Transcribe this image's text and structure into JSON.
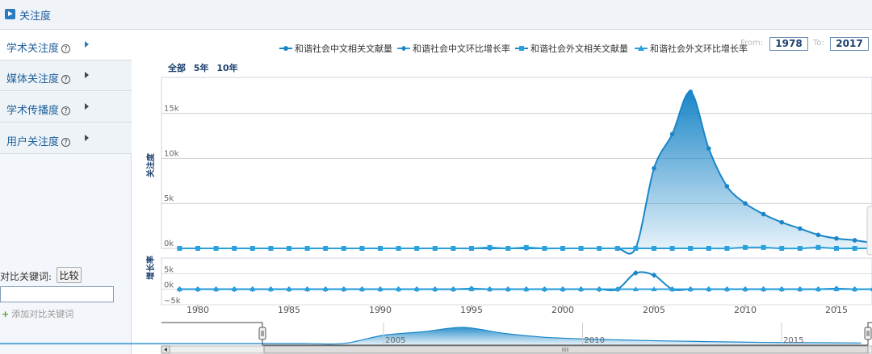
{
  "header": {
    "title": "关注度"
  },
  "sidebar": {
    "items": [
      {
        "label": "学术关注度",
        "active": true
      },
      {
        "label": "媒体关注度",
        "active": false
      },
      {
        "label": "学术传播度",
        "active": false
      },
      {
        "label": "用户关注度",
        "active": false
      }
    ],
    "help_glyph": "?",
    "compare_label": "对比关键词:",
    "compare_button": "比较",
    "compare_input_value": "",
    "add_keyword": "添加对比关键词",
    "add_keyword_icon": "plus-icon"
  },
  "controls": {
    "range_buttons": [
      "全部",
      "5年",
      "10年"
    ],
    "from_label": "From:",
    "from_value": "1978",
    "to_label": "To:",
    "to_value": "2017"
  },
  "chart_data": {
    "type": "line",
    "legend": {
      "position": "top",
      "entries": [
        "和谐社会中文相关文献量",
        "和谐社会中文环比增长率",
        "和谐社会外文相关文献量",
        "和谐社会外文环比增长率"
      ]
    },
    "colors": {
      "primary": "#1a86c8",
      "secondary": "#2aa0dc",
      "fill": "#1a86c8"
    },
    "xlim": [
      1979,
      2017
    ],
    "x_ticks": [
      1980,
      1985,
      1990,
      1995,
      2000,
      2005,
      2010,
      2015
    ],
    "top_panel": {
      "ylabel": "关注度",
      "ylim": [
        0,
        19000
      ],
      "y_ticks": [
        {
          "value": 0,
          "label": "0k"
        },
        {
          "value": 5000,
          "label": "5k"
        },
        {
          "value": 10000,
          "label": "10k"
        },
        {
          "value": 15000,
          "label": "15k"
        }
      ],
      "series": [
        {
          "name": "和谐社会中文相关文献量",
          "marker": "circle",
          "area": true,
          "x": [
            1979,
            1980,
            1981,
            1982,
            1983,
            1984,
            1985,
            1986,
            1987,
            1988,
            1989,
            1990,
            1991,
            1992,
            1993,
            1994,
            1995,
            1996,
            1997,
            1998,
            1999,
            2000,
            2001,
            2002,
            2003,
            2004,
            2005,
            2006,
            2007,
            2008,
            2009,
            2010,
            2011,
            2012,
            2013,
            2014,
            2015,
            2016,
            2017
          ],
          "values": [
            0,
            0,
            0,
            0,
            0,
            0,
            0,
            0,
            0,
            0,
            0,
            0,
            0,
            0,
            0,
            0,
            0,
            0,
            0,
            0,
            0,
            0,
            0,
            0,
            0,
            50,
            8900,
            12700,
            17400,
            11100,
            6900,
            5000,
            3800,
            2900,
            2200,
            1500,
            1100,
            900,
            600
          ]
        },
        {
          "name": "和谐社会外文相关文献量",
          "marker": "square",
          "area": false,
          "x": [
            1979,
            1980,
            1981,
            1982,
            1983,
            1984,
            1985,
            1986,
            1987,
            1988,
            1989,
            1990,
            1991,
            1992,
            1993,
            1994,
            1995,
            1996,
            1997,
            1998,
            1999,
            2000,
            2001,
            2002,
            2003,
            2004,
            2005,
            2006,
            2007,
            2008,
            2009,
            2010,
            2011,
            2012,
            2013,
            2014,
            2015,
            2016,
            2017
          ],
          "values": [
            0,
            0,
            0,
            0,
            0,
            0,
            0,
            0,
            0,
            0,
            0,
            0,
            0,
            0,
            0,
            0,
            0,
            100,
            0,
            100,
            0,
            0,
            0,
            0,
            0,
            0,
            0,
            0,
            0,
            0,
            0,
            100,
            100,
            0,
            0,
            100,
            0,
            0,
            0
          ]
        }
      ]
    },
    "bottom_panel": {
      "ylabel": "增长率",
      "ylim": [
        -5000,
        10000
      ],
      "y_ticks": [
        {
          "value": -5000,
          "label": "−5k"
        },
        {
          "value": 0,
          "label": "0k"
        },
        {
          "value": 5000,
          "label": "5k"
        }
      ],
      "series": [
        {
          "name": "和谐社会中文环比增长率",
          "marker": "diamond",
          "x": [
            1979,
            1980,
            1981,
            1982,
            1983,
            1984,
            1985,
            1986,
            1987,
            1988,
            1989,
            1990,
            1991,
            1992,
            1993,
            1994,
            1995,
            1996,
            1997,
            1998,
            1999,
            2000,
            2001,
            2002,
            2003,
            2004,
            2005,
            2006,
            2007,
            2008,
            2009,
            2010,
            2011,
            2012,
            2013,
            2014,
            2015,
            2016,
            2017
          ],
          "values": [
            0,
            0,
            0,
            0,
            0,
            0,
            0,
            0,
            0,
            0,
            0,
            0,
            0,
            0,
            0,
            0,
            200,
            0,
            0,
            0,
            0,
            0,
            0,
            0,
            0,
            5200,
            4500,
            0,
            0,
            0,
            0,
            0,
            0,
            0,
            0,
            0,
            200,
            0,
            0
          ]
        },
        {
          "name": "和谐社会外文环比增长率",
          "marker": "triangle",
          "x": [
            1979,
            1980,
            1981,
            1982,
            1983,
            1984,
            1985,
            1986,
            1987,
            1988,
            1989,
            1990,
            1991,
            1992,
            1993,
            1994,
            1995,
            1996,
            1997,
            1998,
            1999,
            2000,
            2001,
            2002,
            2003,
            2004,
            2005,
            2006,
            2007,
            2008,
            2009,
            2010,
            2011,
            2012,
            2013,
            2014,
            2015,
            2016,
            2017
          ],
          "values": [
            0,
            0,
            0,
            0,
            0,
            0,
            0,
            0,
            0,
            0,
            0,
            0,
            0,
            0,
            0,
            0,
            0,
            0,
            0,
            0,
            0,
            0,
            0,
            0,
            0,
            0,
            0,
            0,
            0,
            0,
            0,
            0,
            0,
            0,
            0,
            0,
            0,
            0,
            0
          ]
        }
      ]
    },
    "navigator": {
      "x_ticks": [
        2005,
        2010,
        2015
      ],
      "scroll_left_icon": "chevron-left-icon",
      "scroll_grip_icon": "grip-icon"
    }
  }
}
